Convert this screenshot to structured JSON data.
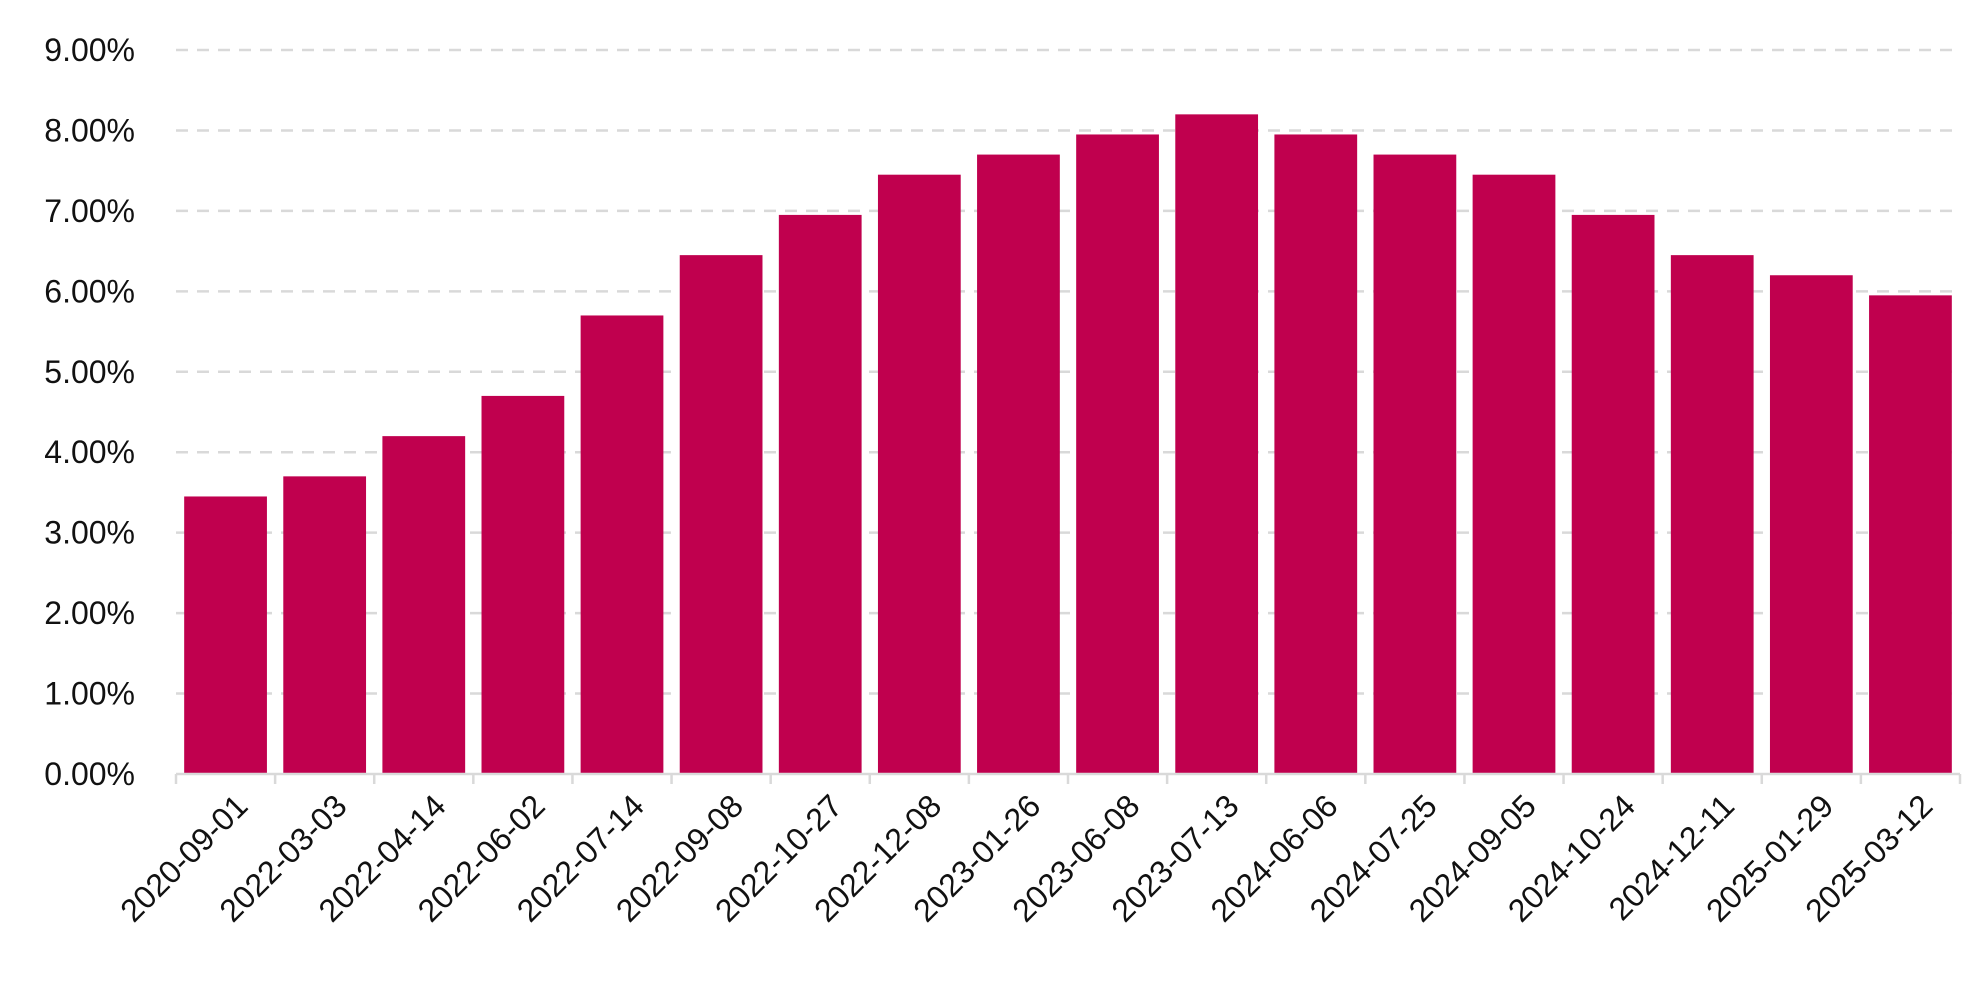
{
  "chart_data": {
    "type": "bar",
    "title": "",
    "xlabel": "",
    "ylabel": "",
    "categories": [
      "2020-09-01",
      "2022-03-03",
      "2022-04-14",
      "2022-06-02",
      "2022-07-14",
      "2022-09-08",
      "2022-10-27",
      "2022-12-08",
      "2023-01-26",
      "2023-06-08",
      "2023-07-13",
      "2024-06-06",
      "2024-07-25",
      "2024-09-05",
      "2024-10-24",
      "2024-12-11",
      "2025-01-29",
      "2025-03-12"
    ],
    "values": [
      3.45,
      3.7,
      4.2,
      4.7,
      5.7,
      6.45,
      6.95,
      7.45,
      7.7,
      7.95,
      8.2,
      7.95,
      7.7,
      7.45,
      6.95,
      6.45,
      6.2,
      5.95
    ],
    "y_ticks": [
      "0.00%",
      "1.00%",
      "2.00%",
      "3.00%",
      "4.00%",
      "5.00%",
      "6.00%",
      "7.00%",
      "8.00%",
      "9.00%"
    ],
    "ylim": [
      0,
      9
    ],
    "grid": true,
    "legend": "none",
    "bar_color": "#c0004e"
  }
}
